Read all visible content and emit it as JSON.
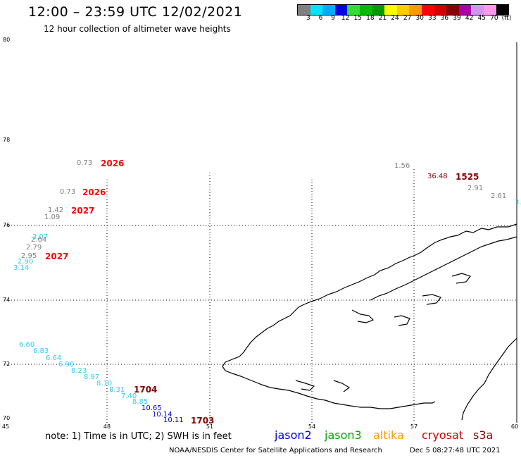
{
  "header": {
    "title": "12:00 – 23:59 UTC 12/02/2021",
    "subtitle": "12 hour collection of altimeter wave heights"
  },
  "colorbar": {
    "colors": [
      "#808080",
      "#00e5ff",
      "#00aaff",
      "#0000e6",
      "#33dd33",
      "#00bb00",
      "#009900",
      "#ffff00",
      "#ffcc00",
      "#ff9900",
      "#ff0000",
      "#cc0000",
      "#880000",
      "#aa00aa",
      "#cc99ee",
      "#ff99ee",
      "#000000"
    ],
    "labels": [
      "3",
      "6",
      "9",
      "12",
      "15",
      "18",
      "21",
      "24",
      "27",
      "30",
      "33",
      "36",
      "39",
      "42",
      "45",
      "70",
      "(ft)"
    ]
  },
  "axes": {
    "lat_labels": [
      "80",
      "78",
      "76",
      "74",
      "72",
      "70"
    ],
    "lon_labels": [
      "45",
      "48",
      "51",
      "54",
      "57",
      "60"
    ]
  },
  "observations": [
    {
      "text": "0.73",
      "color": "#808080"
    },
    {
      "text": "0.73",
      "color": "#808080"
    },
    {
      "text": "1.42",
      "color": "#808080"
    },
    {
      "text": "1.09",
      "color": "#808080"
    },
    {
      "text": "3.07",
      "color": "#33ccee"
    },
    {
      "text": "2.64",
      "color": "#808080"
    },
    {
      "text": "2.79",
      "color": "#808080"
    },
    {
      "text": "2.95",
      "color": "#808080"
    },
    {
      "text": "2.90",
      "color": "#33ccee"
    },
    {
      "text": "3.14",
      "color": "#33ccee"
    },
    {
      "text": "1.56",
      "color": "#808080"
    },
    {
      "text": "36.48",
      "color": "#880000"
    },
    {
      "text": "2.91",
      "color": "#808080"
    },
    {
      "text": "2.61",
      "color": "#808080"
    },
    {
      "text": "3.",
      "color": "#33ccee"
    },
    {
      "text": "6.60",
      "color": "#33ccee"
    },
    {
      "text": "6.83",
      "color": "#33ccee"
    },
    {
      "text": "6.64",
      "color": "#33ccee"
    },
    {
      "text": "6.90",
      "color": "#33ccee"
    },
    {
      "text": "8.23",
      "color": "#33ccee"
    },
    {
      "text": "8.97",
      "color": "#33ccee"
    },
    {
      "text": "8.10",
      "color": "#33ccee"
    },
    {
      "text": "8.31",
      "color": "#33ccee"
    },
    {
      "text": "7.40",
      "color": "#33ccee"
    },
    {
      "text": "8.85",
      "color": "#33ccee"
    },
    {
      "text": "10.65",
      "color": "#0000e6"
    },
    {
      "text": "10.14",
      "color": "#0000e6"
    },
    {
      "text": "10.11",
      "color": "#0000e6"
    }
  ],
  "passes": [
    {
      "text": "2026",
      "color": "#ff0000"
    },
    {
      "text": "2026",
      "color": "#ff0000"
    },
    {
      "text": "2027",
      "color": "#ff0000"
    },
    {
      "text": "2027",
      "color": "#ff0000"
    },
    {
      "text": "1525",
      "color": "#880000"
    },
    {
      "text": "1704",
      "color": "#880000"
    },
    {
      "text": "1703",
      "color": "#880000"
    }
  ],
  "legend": {
    "note": "note: 1) Time is in UTC; 2) SWH is in feet",
    "satellites": [
      {
        "name": "jason2",
        "color": "#0000e6"
      },
      {
        "name": "jason3",
        "color": "#00aa00"
      },
      {
        "name": "altika",
        "color": "#ff9900"
      },
      {
        "name": "cryosat",
        "color": "#cc0000"
      },
      {
        "name": "s3a",
        "color": "#880000"
      }
    ]
  },
  "footer": {
    "source": "NOAA/NESDIS Center for Satellite Applications and Research",
    "timestamp": "Dec  5 08:27:48 UTC 2021"
  }
}
